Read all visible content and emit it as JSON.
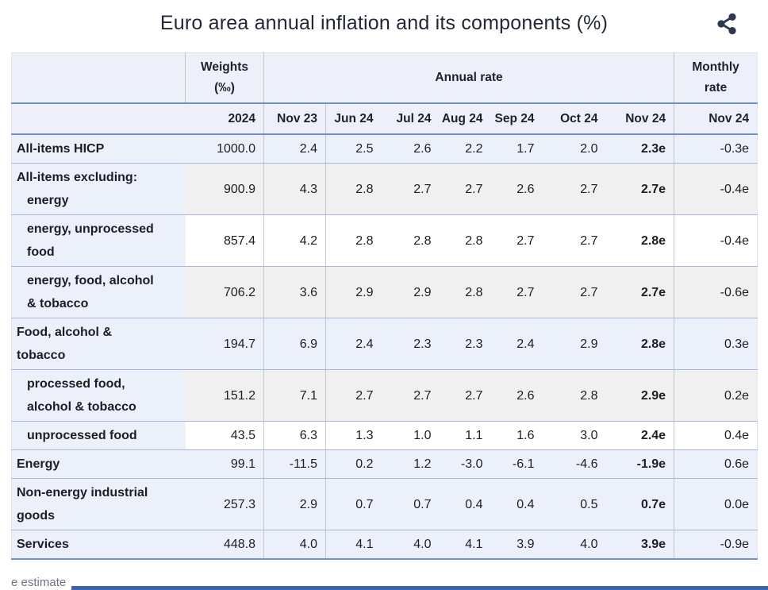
{
  "title": "Euro area annual inflation and its components (%)",
  "header": {
    "weights_label": "Weights",
    "weights_unit": "(‰)",
    "weights_year": "2024",
    "annual_rate_label": "Annual rate",
    "monthly_label1": "Monthly",
    "monthly_label2": "rate",
    "annual_columns": [
      "Nov 23",
      "Jun 24",
      "Jul 24",
      "Aug 24",
      "Sep 24",
      "Oct 24",
      "Nov 24"
    ],
    "monthly_column": "Nov 24"
  },
  "rows": [
    {
      "label_lines": [
        "All-items HICP"
      ],
      "indent": 0,
      "weight": "1000.0",
      "annual": [
        "2.4",
        "2.5",
        "2.6",
        "2.2",
        "1.7",
        "2.0",
        "2.3e"
      ],
      "monthly": "-0.3e",
      "bg": "hl"
    },
    {
      "label_lines": [
        "All-items excluding:",
        "energy"
      ],
      "indent": 0,
      "indent_line2": true,
      "weight": "900.9",
      "annual": [
        "4.3",
        "2.8",
        "2.7",
        "2.7",
        "2.6",
        "2.7",
        "2.7e"
      ],
      "monthly": "-0.4e",
      "bg": "alt"
    },
    {
      "label_lines": [
        "energy, unprocessed",
        "food"
      ],
      "indent": 1,
      "weight": "857.4",
      "annual": [
        "4.2",
        "2.8",
        "2.8",
        "2.8",
        "2.7",
        "2.7",
        "2.8e"
      ],
      "monthly": "-0.4e",
      "bg": "plain"
    },
    {
      "label_lines": [
        "energy, food, alcohol",
        "& tobacco"
      ],
      "indent": 1,
      "weight": "706.2",
      "annual": [
        "3.6",
        "2.9",
        "2.9",
        "2.8",
        "2.7",
        "2.7",
        "2.7e"
      ],
      "monthly": "-0.6e",
      "bg": "alt"
    },
    {
      "label_lines": [
        "Food, alcohol &",
        "tobacco"
      ],
      "indent": 0,
      "weight": "194.7",
      "annual": [
        "6.9",
        "2.4",
        "2.3",
        "2.3",
        "2.4",
        "2.9",
        "2.8e"
      ],
      "monthly": "0.3e",
      "bg": "hl"
    },
    {
      "label_lines": [
        "processed food,",
        "alcohol & tobacco"
      ],
      "indent": 1,
      "weight": "151.2",
      "annual": [
        "7.1",
        "2.7",
        "2.7",
        "2.7",
        "2.6",
        "2.8",
        "2.9e"
      ],
      "monthly": "0.2e",
      "bg": "alt"
    },
    {
      "label_lines": [
        "unprocessed food"
      ],
      "indent": 1,
      "weight": "43.5",
      "annual": [
        "6.3",
        "1.3",
        "1.0",
        "1.1",
        "1.6",
        "3.0",
        "2.4e"
      ],
      "monthly": "0.4e",
      "bg": "plain"
    },
    {
      "label_lines": [
        "Energy"
      ],
      "indent": 0,
      "weight": "99.1",
      "annual": [
        "-11.5",
        "0.2",
        "1.2",
        "-3.0",
        "-6.1",
        "-4.6",
        "-1.9e"
      ],
      "monthly": "0.6e",
      "bg": "hl"
    },
    {
      "label_lines": [
        "Non-energy industrial",
        "goods"
      ],
      "indent": 0,
      "weight": "257.3",
      "annual": [
        "2.9",
        "0.7",
        "0.7",
        "0.4",
        "0.4",
        "0.5",
        "0.7e"
      ],
      "monthly": "0.0e",
      "bg": "hl"
    },
    {
      "label_lines": [
        "Services"
      ],
      "indent": 0,
      "weight": "448.8",
      "annual": [
        "4.0",
        "4.1",
        "4.0",
        "4.1",
        "3.9",
        "4.0",
        "3.9e"
      ],
      "monthly": "-0.9e",
      "bg": "hl"
    }
  ],
  "footer": {
    "note": "e estimate"
  },
  "icons": {
    "share": "share-icon"
  },
  "colors": {
    "header_bg": "#edf0f9",
    "row_highlight_bg": "#ecf0fa",
    "row_alt_bg": "#f0f0f1",
    "heavy_rule": "#6e90cb",
    "light_rule": "#a6b7db",
    "column_rule": "#c2c6cd",
    "icon": "#2e3850",
    "bottom_bar": "#3d63ae",
    "note_text": "#6b7480"
  }
}
